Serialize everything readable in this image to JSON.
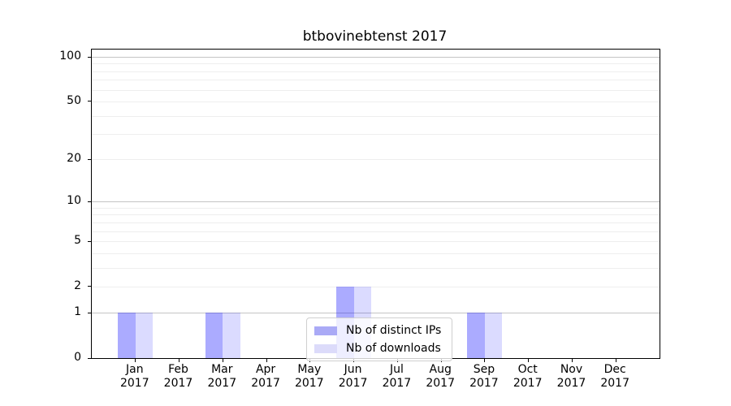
{
  "figure": {
    "background": "#ffffff"
  },
  "chart_data": {
    "type": "bar",
    "title": "btbovinebtenst 2017",
    "categories": [
      {
        "month": "Jan",
        "year": "2017"
      },
      {
        "month": "Feb",
        "year": "2017"
      },
      {
        "month": "Mar",
        "year": "2017"
      },
      {
        "month": "Apr",
        "year": "2017"
      },
      {
        "month": "May",
        "year": "2017"
      },
      {
        "month": "Jun",
        "year": "2017"
      },
      {
        "month": "Jul",
        "year": "2017"
      },
      {
        "month": "Aug",
        "year": "2017"
      },
      {
        "month": "Sep",
        "year": "2017"
      },
      {
        "month": "Oct",
        "year": "2017"
      },
      {
        "month": "Nov",
        "year": "2017"
      },
      {
        "month": "Dec",
        "year": "2017"
      }
    ],
    "series": [
      {
        "name": "Nb of distinct IPs",
        "color": "rgba(0,0,255,0.33)",
        "color_hex": "#aaaaf6",
        "values": [
          1,
          0,
          1,
          0,
          0,
          2,
          0,
          0,
          1,
          0,
          0,
          0
        ]
      },
      {
        "name": "Nb of downloads",
        "color": "rgba(0,0,255,0.14)",
        "color_hex": "#dcdbfa",
        "values": [
          1,
          0,
          1,
          0,
          0,
          2,
          0,
          0,
          1,
          0,
          0,
          0
        ]
      }
    ],
    "xlabel": "",
    "ylabel": "",
    "scale": "log1p",
    "ylim": [
      0,
      112
    ],
    "yticks": [
      0,
      1,
      2,
      5,
      10,
      20,
      50,
      100
    ],
    "major_gridlines": [
      1,
      10,
      100
    ],
    "minor_gridlines": [
      2,
      3,
      4,
      5,
      6,
      7,
      8,
      9,
      20,
      30,
      40,
      50,
      60,
      70,
      80,
      90
    ],
    "grid": "both",
    "legend_position": "lower center"
  },
  "colors": {
    "distinct_ips_bar": "#aaaaf6",
    "downloads_bar": "#dcdbfa",
    "grid_major": "#c4c4c4",
    "grid_minor": "#eeeeee",
    "axis": "#000000",
    "legend_border": "#cfcfcf"
  }
}
